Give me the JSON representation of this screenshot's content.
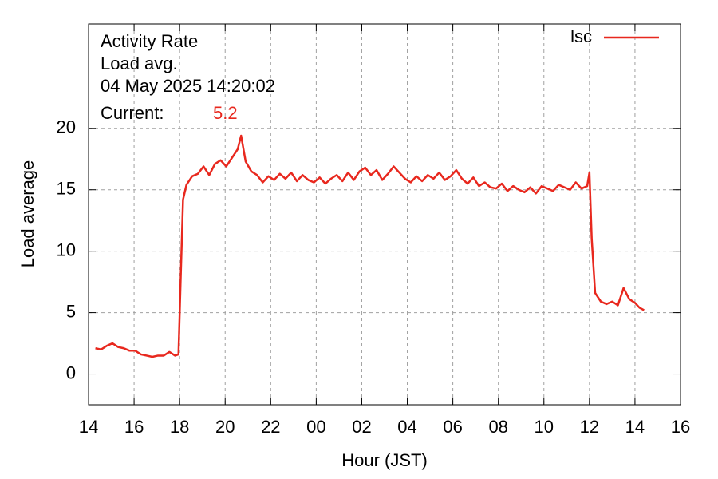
{
  "chart_data": {
    "type": "line",
    "title_lines": [
      "Activity Rate",
      "Load avg.",
      "04 May 2025 14:20:02"
    ],
    "current_label": "Current:",
    "current_value": "5.2",
    "xlabel": "Hour (JST)",
    "ylabel": "Load average",
    "xlim": [
      14,
      40
    ],
    "ylim": [
      -2.5,
      28.5
    ],
    "xticks": [
      14,
      16,
      18,
      20,
      22,
      {
        "value": 24,
        "label": "00"
      },
      {
        "value": 26,
        "label": "02"
      },
      {
        "value": 28,
        "label": "04"
      },
      {
        "value": 30,
        "label": "06"
      },
      {
        "value": 32,
        "label": "08"
      },
      {
        "value": 34,
        "label": "10"
      },
      {
        "value": 36,
        "label": "12"
      },
      {
        "value": 38,
        "label": "14"
      },
      {
        "value": 40,
        "label": "16"
      }
    ],
    "yticks": [
      0,
      5,
      10,
      15,
      20
    ],
    "grid": true,
    "zeroaxis": true,
    "legend": "top-right",
    "x": [
      14.3,
      14.55,
      14.8,
      15.05,
      15.3,
      15.55,
      15.8,
      16.05,
      16.3,
      16.55,
      16.8,
      17.05,
      17.3,
      17.55,
      17.8,
      17.95,
      18.05,
      18.15,
      18.3,
      18.55,
      18.8,
      19.05,
      19.3,
      19.55,
      19.8,
      20.05,
      20.3,
      20.55,
      20.7,
      20.9,
      21.15,
      21.4,
      21.65,
      21.9,
      22.15,
      22.4,
      22.65,
      22.9,
      23.15,
      23.4,
      23.65,
      23.9,
      24.15,
      24.4,
      24.65,
      24.9,
      25.15,
      25.4,
      25.65,
      25.9,
      26.15,
      26.4,
      26.65,
      26.9,
      27.15,
      27.4,
      27.65,
      27.9,
      28.15,
      28.4,
      28.65,
      28.9,
      29.15,
      29.4,
      29.65,
      29.9,
      30.15,
      30.4,
      30.65,
      30.9,
      31.15,
      31.4,
      31.65,
      31.9,
      32.15,
      32.4,
      32.65,
      32.9,
      33.15,
      33.4,
      33.65,
      33.9,
      34.15,
      34.4,
      34.65,
      34.9,
      35.15,
      35.4,
      35.65,
      35.9,
      36.0,
      36.1,
      36.25,
      36.5,
      36.75,
      37.0,
      37.25,
      37.5,
      37.75,
      38.0,
      38.2,
      38.4
    ],
    "series": [
      {
        "name": "lsc",
        "color": "#e8281e",
        "values": [
          2.1,
          2.0,
          2.3,
          2.5,
          2.2,
          2.1,
          1.9,
          1.9,
          1.6,
          1.5,
          1.4,
          1.5,
          1.5,
          1.8,
          1.5,
          1.6,
          8.0,
          14.2,
          15.4,
          16.1,
          16.3,
          16.9,
          16.2,
          17.1,
          17.4,
          16.9,
          17.6,
          18.3,
          19.4,
          17.3,
          16.5,
          16.2,
          15.6,
          16.1,
          15.8,
          16.3,
          15.9,
          16.4,
          15.7,
          16.2,
          15.8,
          15.6,
          16.0,
          15.5,
          15.9,
          16.2,
          15.7,
          16.4,
          15.8,
          16.5,
          16.8,
          16.2,
          16.6,
          15.8,
          16.3,
          16.9,
          16.4,
          15.9,
          15.6,
          16.1,
          15.7,
          16.2,
          15.9,
          16.4,
          15.8,
          16.1,
          16.6,
          15.9,
          15.5,
          16.0,
          15.3,
          15.6,
          15.2,
          15.1,
          15.5,
          14.9,
          15.3,
          15.0,
          14.8,
          15.2,
          14.7,
          15.3,
          15.1,
          14.9,
          15.4,
          15.2,
          15.0,
          15.6,
          15.1,
          15.3,
          16.4,
          11.0,
          6.6,
          5.9,
          5.7,
          5.9,
          5.6,
          7.0,
          6.1,
          5.8,
          5.4,
          5.2
        ]
      }
    ]
  }
}
